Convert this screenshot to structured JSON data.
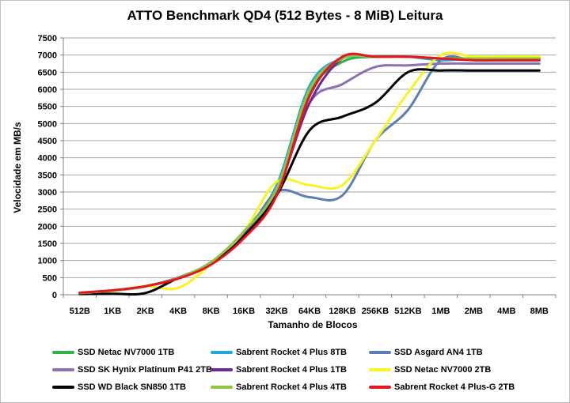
{
  "chart_data": {
    "type": "line",
    "title": "ATTO Benchmark QD4 (512 Bytes - 8 MiB) Leitura",
    "xlabel": "Tamanho de Blocos",
    "ylabel": "Velocidade em MB/s",
    "ylim": [
      0,
      7500
    ],
    "yticks": [
      "0",
      "500",
      "1000",
      "1500",
      "2000",
      "2500",
      "3000",
      "3500",
      "4000",
      "4500",
      "5000",
      "5500",
      "6000",
      "6500",
      "7000",
      "7500"
    ],
    "categories": [
      "512B",
      "1KB",
      "2KB",
      "4KB",
      "8KB",
      "16KB",
      "32KB",
      "64KB",
      "128KB",
      "256KB",
      "512KB",
      "1MB",
      "2MB",
      "4MB",
      "8MB"
    ],
    "grid": "horizontal",
    "legend_position": "bottom",
    "series": [
      {
        "name": "SSD Netac NV7000 1TB",
        "color": "#2fb24a",
        "values": [
          40,
          120,
          250,
          500,
          950,
          1800,
          3000,
          5900,
          6800,
          6950,
          6950,
          6900,
          6900,
          6900,
          6900
        ]
      },
      {
        "name": "Sabrent Rocket 4 Plus 8TB",
        "color": "#1fa8d8",
        "values": [
          45,
          120,
          245,
          500,
          950,
          1850,
          3200,
          6100,
          6900,
          6950,
          6950,
          6850,
          6900,
          6900,
          6900
        ]
      },
      {
        "name": "SSD Asgard AN4 1TB",
        "color": "#5b7fb0",
        "values": [
          45,
          115,
          240,
          490,
          900,
          1700,
          3000,
          2850,
          2900,
          4500,
          5400,
          6850,
          6850,
          6850,
          6850
        ]
      },
      {
        "name": "SSD SK Hynix Platinum P41 2TB",
        "color": "#8a72b0",
        "values": [
          45,
          120,
          245,
          500,
          940,
          1750,
          3000,
          5600,
          6150,
          6650,
          6700,
          6750,
          6750,
          6750,
          6750
        ]
      },
      {
        "name": "Sabrent Rocket 4 Plus 1TB",
        "color": "#6a2c90",
        "values": [
          45,
          120,
          245,
          495,
          930,
          1750,
          3000,
          5600,
          6900,
          6950,
          6950,
          6900,
          6900,
          6900,
          6900
        ]
      },
      {
        "name": "SSD Netac NV7000 2TB",
        "color": "#f5f522",
        "values": [
          40,
          110,
          250,
          200,
          900,
          1850,
          3300,
          3200,
          3200,
          4500,
          5900,
          7000,
          6950,
          6950,
          6950
        ]
      },
      {
        "name": "SSD WD Black SN850 1TB",
        "color": "#000000",
        "values": [
          20,
          30,
          50,
          490,
          900,
          1700,
          2900,
          4800,
          5200,
          5600,
          6500,
          6550,
          6550,
          6550,
          6550
        ]
      },
      {
        "name": "Sabrent Rocket 4 Plus 4TB",
        "color": "#8dc641",
        "values": [
          45,
          120,
          245,
          495,
          950,
          1850,
          3100,
          6000,
          6900,
          6950,
          6950,
          6900,
          6900,
          6900,
          6900
        ]
      },
      {
        "name": "Sabrent Rocket 4 Plus-G 2TB",
        "color": "#e4161f",
        "values": [
          60,
          130,
          250,
          470,
          880,
          1650,
          2900,
          5800,
          6950,
          6950,
          6950,
          6900,
          6850,
          6850,
          6850
        ]
      }
    ]
  }
}
